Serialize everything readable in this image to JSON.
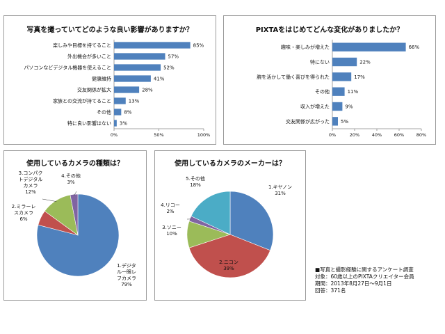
{
  "chart_data": [
    {
      "type": "bar",
      "orientation": "horizontal",
      "title": "写真を撮っていてどのような良い影響がありますか？",
      "categories": [
        "楽しみや目標を持てること",
        "外出機会が多いこと",
        "パソコンなどデジタル機器を使えること",
        "健康維持",
        "交友関係が拡大",
        "家族との交流が持てること",
        "その他",
        "特に良い影響はない"
      ],
      "values": [
        85,
        57,
        52,
        41,
        28,
        13,
        8,
        3
      ],
      "data_labels": [
        "85%",
        "57%",
        "52%",
        "41%",
        "28%",
        "13%",
        "8%",
        "3%"
      ],
      "xlim": [
        0,
        100
      ],
      "xticks": [
        "0%",
        "50%",
        "100%"
      ],
      "color": "#4f81bd"
    },
    {
      "type": "bar",
      "orientation": "horizontal",
      "title": "PIXTAをはじめてどんな変化がありましたか？",
      "categories": [
        "趣味・楽しみが増えた",
        "特にない",
        "腕を活かして働く喜びを得られた",
        "その他",
        "収入が増えた",
        "交友関係が広がった"
      ],
      "values": [
        66,
        22,
        17,
        11,
        9,
        5
      ],
      "data_labels": [
        "66%",
        "22%",
        "17%",
        "11%",
        "9%",
        "5%"
      ],
      "xlim": [
        0,
        80
      ],
      "xticks": [
        "0%",
        "20%",
        "40%",
        "60%",
        "80%"
      ],
      "color": "#4f81bd"
    },
    {
      "type": "pie",
      "title": "使用しているカメラの種類は？",
      "slices": [
        {
          "label": [
            "1.デジタ",
            "ル一眼レ",
            "フカメラ"
          ],
          "value": 79,
          "pct": "79%",
          "color": "#4f81bd"
        },
        {
          "label": [
            "2.ミラーレ",
            "スカメラ"
          ],
          "value": 6,
          "pct": "6%",
          "color": "#c0504d"
        },
        {
          "label": [
            "3.コンパク",
            "トデジタル",
            "カメラ"
          ],
          "value": 12,
          "pct": "12%",
          "color": "#9bbb59"
        },
        {
          "label": [
            "4.その他"
          ],
          "value": 3,
          "pct": "3%",
          "color": "#8064a2"
        }
      ]
    },
    {
      "type": "pie",
      "title": "使用しているカメラのメーカーは？",
      "slices": [
        {
          "label": [
            "1.キヤノン"
          ],
          "value": 31,
          "pct": "31%",
          "color": "#4f81bd"
        },
        {
          "label": [
            "2.ニコン"
          ],
          "value": 39,
          "pct": "39%",
          "color": "#c0504d"
        },
        {
          "label": [
            "3.ソニー"
          ],
          "value": 10,
          "pct": "10%",
          "color": "#9bbb59"
        },
        {
          "label": [
            "4.リコー"
          ],
          "value": 2,
          "pct": "2%",
          "color": "#8064a2"
        },
        {
          "label": [
            "5.その他"
          ],
          "value": 18,
          "pct": "18%",
          "color": "#4bacc6"
        }
      ]
    }
  ],
  "survey_note": [
    "■写真と撮影経験に関するアンケート調査",
    "対象：60歳以上のPIXTAクリエイター会員",
    "期間：2013年8月27日～9月1日",
    "回答：371名"
  ]
}
